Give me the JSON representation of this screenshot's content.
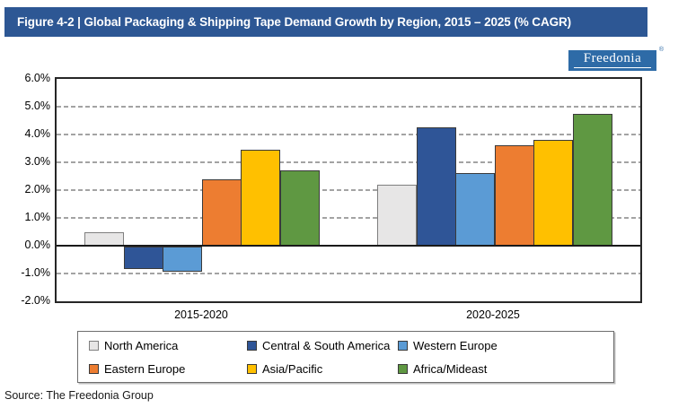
{
  "header": {
    "title": "Figure 4-2 | Global Packaging & Shipping Tape Demand Growth by Region, 2015 – 2025 (% CAGR)"
  },
  "logo": {
    "text": "Freedonia",
    "registered_mark": "®"
  },
  "chart_data": {
    "type": "bar",
    "title": "Global Packaging & Shipping Tape Demand Growth by Region, 2015 – 2025 (% CAGR)",
    "categories": [
      "2015-2020",
      "2020-2025"
    ],
    "series": [
      {
        "name": "North America",
        "color": "#e7e6e6",
        "border": "#7f7f7f",
        "values": [
          0.5,
          2.2
        ]
      },
      {
        "name": "Central & South America",
        "color": "#2f5597",
        "border": "#3a3a3a",
        "values": [
          -0.8,
          4.25
        ]
      },
      {
        "name": "Western Europe",
        "color": "#5b9bd5",
        "border": "#3a3a3a",
        "values": [
          -0.9,
          2.6
        ]
      },
      {
        "name": "Eastern Europe",
        "color": "#ed7d31",
        "border": "#3a3a3a",
        "values": [
          2.4,
          3.6
        ]
      },
      {
        "name": "Asia/Pacific",
        "color": "#ffc000",
        "border": "#3a3a3a",
        "values": [
          3.45,
          3.8
        ]
      },
      {
        "name": "Africa/Mideast",
        "color": "#5f9842",
        "border": "#3a3a3a",
        "values": [
          2.7,
          4.75
        ]
      }
    ],
    "ylim": [
      -2,
      6
    ],
    "ytick_values": [
      6,
      5,
      4,
      3,
      2,
      1,
      0,
      -1,
      -2
    ],
    "ytick_labels": [
      "6.0%",
      "5.0%",
      "4.0%",
      "3.0%",
      "2.0%",
      "1.0%",
      "0.0%",
      "-1.0%",
      "-2.0%"
    ],
    "xlabel": "",
    "ylabel": "",
    "grid": "horizontal-dashed",
    "legend_position": "bottom-box"
  },
  "source": {
    "text": "Source: The Freedonia Group"
  }
}
